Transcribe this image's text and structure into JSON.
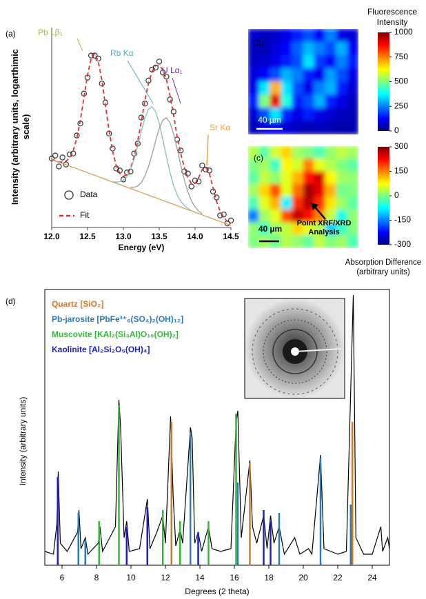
{
  "chart_data": [
    {
      "type": "scatter",
      "panel_label": "(a)",
      "xlabel": "Energy (eV)",
      "ylabel": "Intensity (arbitrary units, logarthimic scale)",
      "xlim": [
        12,
        14.5
      ],
      "ylim": [
        0,
        100
      ],
      "xticks": [
        {
          "value": 12,
          "label": "12.0"
        },
        12.5,
        {
          "value": 13,
          "label": "13.0"
        },
        13.5,
        {
          "value": 14,
          "label": "14.0"
        },
        14.5
      ],
      "x": [
        12,
        12.05,
        12.1,
        12.15,
        12.2,
        12.25,
        12.3,
        12.35,
        12.4,
        12.45,
        12.5,
        12.55,
        12.6,
        12.65,
        12.7,
        12.75,
        12.8,
        12.85,
        12.9,
        12.95,
        13,
        13.05,
        13.1,
        13.15,
        13.2,
        13.25,
        13.3,
        13.35,
        13.4,
        13.45,
        13.5,
        13.55,
        13.6,
        13.65,
        13.7,
        13.75,
        13.8,
        13.85,
        13.9,
        13.95,
        14,
        14.05,
        14.1,
        14.15,
        14.2,
        14.25,
        14.3,
        14.35,
        14.4,
        14.45,
        14.5
      ],
      "series": [
        {
          "name": "Data",
          "style": "markers",
          "color": "#333333",
          "values": [
            34.5,
            36,
            30.5,
            35,
            31.5,
            36.5,
            37,
            46,
            52,
            67,
            75,
            86,
            86,
            84.5,
            72,
            62.5,
            47,
            39.5,
            29.5,
            28.5,
            24,
            27.5,
            28,
            37,
            42,
            55,
            62,
            73.5,
            79,
            80,
            83,
            77.5,
            75.5,
            64,
            58,
            44,
            38.5,
            28,
            27,
            20.5,
            23.5,
            23,
            31,
            29,
            28.5,
            18,
            15,
            6,
            6.5,
            2,
            3.5
          ]
        },
        {
          "name": "Fit",
          "style": "dashed",
          "color": "#e03030",
          "values": [
            34,
            33.3,
            32.7,
            32.7,
            33.2,
            34.7,
            38.3,
            44.6,
            53.7,
            65.1,
            76.3,
            84.4,
            87.1,
            83.1,
            73.7,
            61.1,
            48.4,
            38.1,
            31,
            27,
            25.6,
            26.4,
            29.5,
            35.4,
            43.3,
            53,
            63.6,
            72,
            78,
            81,
            81,
            79,
            74,
            66,
            56.4,
            45.5,
            37,
            30,
            25,
            22,
            22,
            25,
            29,
            30,
            27,
            20,
            13,
            8,
            5,
            3,
            2
          ]
        },
        {
          "style": "solid",
          "color": "#d4a050",
          "values": [
            34,
            33.3,
            32.7,
            32,
            31.4,
            30.7,
            30,
            29.4,
            28.7,
            28.1,
            27.4,
            26.7,
            26.1,
            25.4,
            24.8,
            24.1,
            23.4,
            22.7,
            22.1,
            21.5,
            20.8,
            20.1,
            19.5,
            18.8,
            18.2,
            17.5,
            16.8,
            16.2,
            15.5,
            14.9,
            14.2,
            13.5,
            12.9,
            12.2,
            11.6,
            10.9,
            10.2,
            9.6,
            8.9,
            8.3,
            7.6,
            6.9,
            6.3,
            5.6,
            5,
            4.3,
            3.6,
            3,
            2.3,
            1.7,
            1
          ]
        },
        {
          "style": "solid",
          "color": "#7fbfbf",
          "values": [
            null,
            null,
            null,
            null,
            null,
            null,
            null,
            null,
            null,
            null,
            null,
            null,
            null,
            null,
            null,
            null,
            null,
            22.9,
            22.7,
            22.9,
            23.6,
            25.5,
            29,
            34.1,
            40.7,
            48,
            54.7,
            59.2,
            60.5,
            57.9,
            52.1,
            44,
            35.4,
            27.5,
            21.1,
            16.3,
            13,
            11,
            9.5,
            8.3,
            null,
            null,
            null,
            null,
            null,
            null,
            null,
            null,
            null,
            null,
            null
          ]
        },
        {
          "style": "solid",
          "color": "#9a9a9a",
          "values": [
            null,
            null,
            null,
            null,
            null,
            null,
            null,
            null,
            null,
            null,
            null,
            null,
            null,
            null,
            null,
            null,
            null,
            null,
            null,
            null,
            null,
            null,
            20,
            20.1,
            20.8,
            22.5,
            25.7,
            30.4,
            36.5,
            43.4,
            49.5,
            53.7,
            54.9,
            52.4,
            46.9,
            39.4,
            31.2,
            23.8,
            17.8,
            13.3,
            10.2,
            8.2,
            6.8,
            null,
            null,
            null,
            null,
            null,
            null,
            null,
            null
          ]
        }
      ],
      "annotations": [
        {
          "text": "Pb Lβ₁",
          "color": "#9bbb59"
        },
        {
          "text": "Rb Kα",
          "color": "#4bacc6"
        },
        {
          "text": "U Lα₁",
          "color": "#7030a0"
        },
        {
          "text": "Sr Kα",
          "color": "#f0a040"
        }
      ]
    },
    {
      "type": "heatmap",
      "panel_label": "(b)",
      "colorbar_label": "Fluorescence Intensity",
      "scale_bar": "40 µm",
      "colormap": "jet",
      "colorbar_lim": [
        0,
        1000
      ],
      "colorbar_ticks": [
        0,
        250,
        500,
        750,
        1000
      ],
      "values": [
        [
          80,
          60,
          70,
          100,
          150,
          200,
          120,
          250,
          100,
          80
        ],
        [
          60,
          50,
          90,
          120,
          220,
          300,
          250,
          200,
          300,
          120
        ],
        [
          70,
          80,
          100,
          150,
          200,
          350,
          180,
          120,
          250,
          150
        ],
        [
          90,
          120,
          200,
          300,
          250,
          150,
          100,
          280,
          200,
          100
        ],
        [
          100,
          350,
          700,
          350,
          200,
          100,
          250,
          300,
          150,
          80
        ],
        [
          150,
          500,
          900,
          400,
          150,
          200,
          300,
          150,
          100,
          60
        ],
        [
          80,
          200,
          350,
          150,
          100,
          150,
          100,
          80,
          60,
          50
        ],
        [
          50,
          80,
          100,
          80,
          60,
          50,
          60,
          50,
          40,
          50
        ]
      ]
    },
    {
      "type": "heatmap",
      "panel_label": "(c)",
      "colorbar_label": "Absorption Difference (arbitrary units)",
      "scale_bar": "40 µm",
      "annotation": "Point XRF/XRD Analysis",
      "colormap": "jet",
      "colorbar_lim": [
        -300,
        300
      ],
      "colorbar_ticks": [
        -300,
        -150,
        0,
        150,
        300
      ],
      "values": [
        [
          30,
          -20,
          50,
          100,
          20,
          0,
          -30,
          10,
          40,
          20
        ],
        [
          0,
          20,
          -40,
          80,
          50,
          150,
          60,
          30,
          0,
          -20
        ],
        [
          -20,
          40,
          10,
          60,
          120,
          220,
          250,
          80,
          20,
          10
        ],
        [
          20,
          100,
          180,
          60,
          160,
          280,
          240,
          120,
          -10,
          0
        ],
        [
          -30,
          60,
          120,
          -80,
          200,
          270,
          200,
          90,
          20,
          -20
        ],
        [
          -150,
          20,
          60,
          180,
          260,
          220,
          150,
          40,
          -60,
          10
        ],
        [
          10,
          -40,
          20,
          40,
          100,
          60,
          30,
          -100,
          -40,
          0
        ],
        [
          0,
          20,
          -10,
          30,
          10,
          -20,
          40,
          0,
          20,
          -30
        ]
      ]
    },
    {
      "type": "line",
      "panel_label": "(d)",
      "xlabel": "Degrees (2 theta)",
      "ylabel": "Intensity (arbitrary units)",
      "xlim": [
        5,
        25
      ],
      "ylim": [
        0,
        100
      ],
      "xticks": [
        6,
        8,
        10,
        12,
        14,
        16,
        18,
        20,
        22,
        24
      ],
      "color": "#000000",
      "x": [
        5,
        5.5,
        5.7,
        5.78,
        5.9,
        6.3,
        6.9,
        6.98,
        7.1,
        7.35,
        7.5,
        8.1,
        8.2,
        8.35,
        9.1,
        9.3,
        9.4,
        9.6,
        9.75,
        9.9,
        10.5,
        10.95,
        11.1,
        11.5,
        11.85,
        12,
        12.3,
        12.45,
        12.6,
        12.85,
        13,
        13.45,
        13.55,
        13.7,
        13.9,
        14.1,
        14.5,
        14.7,
        15.2,
        15.8,
        16.1,
        16.2,
        16.4,
        16.9,
        17.05,
        17.3,
        17.7,
        17.9,
        18.1,
        18.3,
        18.6,
        18.9,
        19.5,
        19.8,
        20.3,
        20.5,
        21,
        21.2,
        21.6,
        22,
        22.5,
        22.9,
        23.05,
        23.5,
        24,
        24.5,
        24.6,
        24.9,
        25
      ],
      "values": [
        5,
        4,
        15,
        34,
        8,
        5,
        12,
        20,
        6,
        10,
        4,
        8,
        14,
        5,
        14,
        60,
        50,
        10,
        16,
        5,
        6,
        24,
        6,
        12,
        18,
        8,
        54,
        25,
        7,
        13,
        8,
        50,
        46,
        8,
        12,
        5,
        14,
        6,
        5,
        6,
        52,
        56,
        10,
        38,
        14,
        8,
        18,
        6,
        18,
        8,
        14,
        4,
        10,
        4,
        6,
        4,
        40,
        6,
        5,
        4,
        5,
        98,
        10,
        4,
        4,
        14,
        5,
        10,
        6
      ],
      "phases": [
        {
          "name": "Quartz [SiO₂]",
          "color": "#d07a28",
          "positions": [
            12.35,
            16.9,
            22.85
          ],
          "values": [
            52,
            37,
            52
          ]
        },
        {
          "name": "Pb-jarosite [PbFe³⁺₆(SO₄)₂(OH)₁₂]",
          "color": "#2a7ab8",
          "positions": [
            6.95,
            7.35,
            13.45,
            16.2,
            18.6,
            21,
            22.75
          ],
          "values": [
            19,
            9,
            48,
            30,
            19,
            39,
            22
          ]
        },
        {
          "name": "Muscovite [KAl₂(Si₃Al)O₁₀(OH)₂]",
          "color": "#33b833",
          "positions": [
            8.15,
            9.3,
            11.85,
            12.85,
            14.5,
            16.1
          ],
          "values": [
            16,
            58,
            20,
            16,
            16,
            55
          ]
        },
        {
          "name": "Kaolinite [Al₂Si₂O₅(OH)₄]",
          "color": "#2020c0",
          "positions": [
            5.75,
            9.75,
            10.95,
            13.9,
            17.7,
            18.1
          ],
          "values": [
            32,
            14,
            21,
            12,
            20,
            16
          ]
        }
      ]
    }
  ]
}
